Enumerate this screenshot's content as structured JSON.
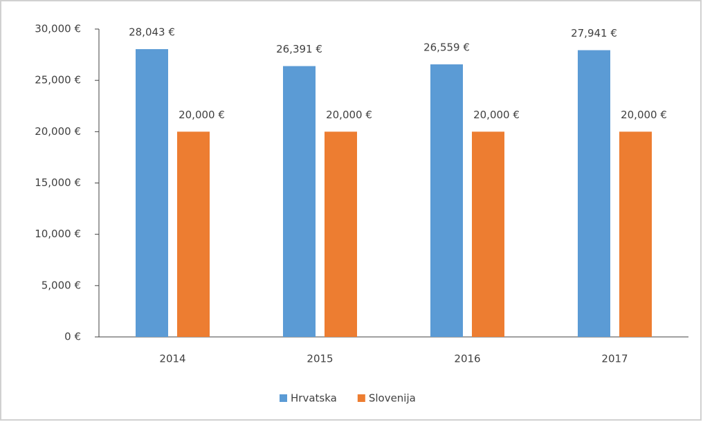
{
  "chart_data": {
    "type": "bar",
    "categories": [
      "2014",
      "2015",
      "2016",
      "2017"
    ],
    "series": [
      {
        "name": "Hrvatska",
        "color": "#5b9bd5",
        "values": [
          28043,
          26391,
          26559,
          27941
        ],
        "value_labels": [
          "28,043 €",
          "26,391 €",
          "26,559 €",
          "27,941 €"
        ]
      },
      {
        "name": "Slovenija",
        "color": "#ed7d31",
        "values": [
          20000,
          20000,
          20000,
          20000
        ],
        "value_labels": [
          "20,000 €",
          "20,000 €",
          "20,000 €",
          "20,000 €"
        ]
      }
    ],
    "ylim": [
      0,
      30000
    ],
    "yticks": [
      {
        "value": 0,
        "label": "0 €"
      },
      {
        "value": 5000,
        "label": "5,000 €"
      },
      {
        "value": 10000,
        "label": "10,000 €"
      },
      {
        "value": 15000,
        "label": "15,000 €"
      },
      {
        "value": 20000,
        "label": "20,000 €"
      },
      {
        "value": 25000,
        "label": "25,000 €"
      },
      {
        "value": 30000,
        "label": "30,000 €"
      }
    ],
    "grid": false
  }
}
